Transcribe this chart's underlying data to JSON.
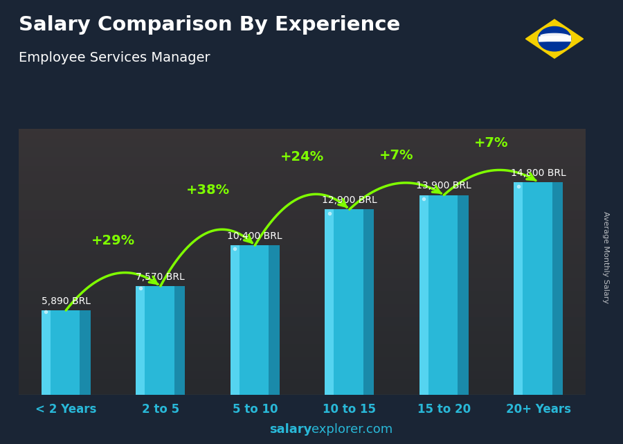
{
  "title": "Salary Comparison By Experience",
  "subtitle": "Employee Services Manager",
  "categories": [
    "< 2 Years",
    "2 to 5",
    "5 to 10",
    "10 to 15",
    "15 to 20",
    "20+ Years"
  ],
  "values": [
    5890,
    7570,
    10400,
    12900,
    13900,
    14800
  ],
  "labels": [
    "5,890 BRL",
    "7,570 BRL",
    "10,400 BRL",
    "12,900 BRL",
    "13,900 BRL",
    "14,800 BRL"
  ],
  "pct_changes": [
    "+29%",
    "+38%",
    "+24%",
    "+7%",
    "+7%"
  ],
  "bar_color_face": "#29b8d8",
  "bar_color_left": "#55d4f0",
  "bar_color_right": "#1a8aaa",
  "bar_color_top_face": "#40c8e8",
  "bg_color": "#1a2535",
  "title_color": "#ffffff",
  "subtitle_color": "#ffffff",
  "label_color": "#ffffff",
  "pct_color": "#7fff00",
  "arrow_color": "#7fff00",
  "ylabel": "Average Monthly Salary",
  "footer_bold": "salary",
  "footer_normal": "explorer.com",
  "ylim": [
    0,
    18500
  ],
  "bar_width": 0.52,
  "figsize": [
    9.0,
    6.41
  ],
  "dpi": 100,
  "flag_green": "#3cb043",
  "flag_yellow": "#f5d000",
  "flag_blue": "#003399"
}
